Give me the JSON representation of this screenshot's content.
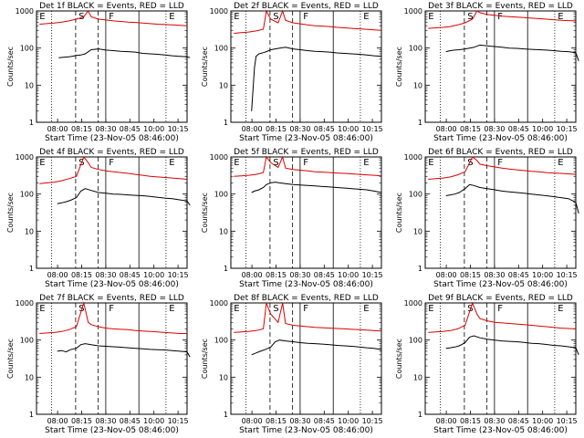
{
  "common": {
    "xlabel": "Start Time (23-Nov-05 08:46:00)",
    "ylabel": "Counts/sec",
    "xticks": [
      "08:00",
      "08:15",
      "08:30",
      "08:45",
      "10:00",
      "10:15"
    ],
    "yticks": [
      "1",
      "10",
      "100",
      "1000"
    ],
    "ylim": [
      1,
      1000
    ],
    "yscale": "log",
    "markers": [
      "E",
      "S",
      "F",
      "E"
    ],
    "colors": {
      "events": "#000000",
      "lld": "#dd0000"
    }
  },
  "chart_data": [
    {
      "type": "line",
      "title": "Det 1f BLACK = Events, RED = LLD",
      "series": [
        {
          "name": "Events",
          "color": "#000000",
          "x": [
            0.13,
            0.2,
            0.22,
            0.25,
            0.28,
            0.31,
            0.35,
            0.4,
            0.45,
            0.5,
            0.55,
            0.6,
            0.65,
            0.7,
            0.75,
            0.8,
            0.85,
            0.9,
            0.95,
            1.0,
            1.02
          ],
          "y": [
            55,
            58,
            60,
            63,
            65,
            70,
            90,
            95,
            88,
            85,
            82,
            80,
            78,
            72,
            70,
            68,
            65,
            62,
            60,
            58,
            55
          ]
        },
        {
          "name": "LLD",
          "color": "#dd0000",
          "x": [
            0,
            0.05,
            0.1,
            0.15,
            0.2,
            0.25,
            0.3,
            0.33,
            0.35,
            0.4,
            0.45,
            0.5,
            0.55,
            0.6,
            0.65,
            0.7,
            0.75,
            0.8,
            0.85,
            0.9,
            0.95,
            1.0
          ],
          "y": [
            440,
            455,
            470,
            500,
            540,
            600,
            700,
            1000,
            700,
            600,
            570,
            540,
            520,
            500,
            490,
            470,
            455,
            440,
            430,
            420,
            410,
            400
          ]
        }
      ]
    },
    {
      "type": "line",
      "title": "Det 2f BLACK = Events, RED = LLD",
      "series": [
        {
          "name": "Events",
          "color": "#000000",
          "x": [
            0.12,
            0.14,
            0.15,
            0.17,
            0.2,
            0.22,
            0.25,
            0.28,
            0.31,
            0.35,
            0.4,
            0.45,
            0.5,
            0.55,
            0.6,
            0.65,
            0.7,
            0.75,
            0.8,
            0.85,
            0.9,
            0.95,
            1.0
          ],
          "y": [
            2,
            30,
            60,
            70,
            75,
            80,
            90,
            95,
            100,
            105,
            95,
            90,
            85,
            82,
            80,
            78,
            74,
            72,
            70,
            68,
            65,
            62,
            60
          ]
        },
        {
          "name": "LLD",
          "color": "#dd0000",
          "x": [
            0,
            0.05,
            0.1,
            0.15,
            0.2,
            0.22,
            0.25,
            0.3,
            0.33,
            0.35,
            0.4,
            0.45,
            0.5,
            0.55,
            0.6,
            0.65,
            0.7,
            0.75,
            0.8,
            0.85,
            0.9,
            0.95,
            1.0
          ],
          "y": [
            250,
            260,
            270,
            290,
            320,
            1000,
            600,
            480,
            1000,
            560,
            480,
            450,
            420,
            400,
            390,
            380,
            360,
            350,
            340,
            330,
            320,
            310,
            300
          ]
        }
      ]
    },
    {
      "type": "line",
      "title": "Det 3f BLACK = Events, RED = LLD",
      "series": [
        {
          "name": "Events",
          "color": "#000000",
          "x": [
            0.12,
            0.15,
            0.18,
            0.21,
            0.25,
            0.28,
            0.31,
            0.35,
            0.4,
            0.45,
            0.5,
            0.55,
            0.6,
            0.65,
            0.7,
            0.75,
            0.8,
            0.85,
            0.9,
            0.95,
            1.0,
            1.02
          ],
          "y": [
            80,
            85,
            88,
            90,
            95,
            100,
            105,
            120,
            115,
            110,
            105,
            100,
            98,
            95,
            92,
            90,
            88,
            85,
            82,
            80,
            75,
            45
          ]
        },
        {
          "name": "LLD",
          "color": "#dd0000",
          "x": [
            0,
            0.05,
            0.1,
            0.15,
            0.2,
            0.25,
            0.3,
            0.33,
            0.35,
            0.4,
            0.45,
            0.5,
            0.55,
            0.6,
            0.65,
            0.7,
            0.75,
            0.8,
            0.85,
            0.9,
            0.95,
            1.0
          ],
          "y": [
            340,
            350,
            360,
            380,
            420,
            480,
            600,
            1000,
            900,
            800,
            760,
            720,
            700,
            680,
            660,
            640,
            620,
            600,
            580,
            560,
            550,
            540
          ]
        }
      ]
    },
    {
      "type": "line",
      "title": "Det 4f BLACK = Events, RED = LLD",
      "series": [
        {
          "name": "Events",
          "color": "#000000",
          "x": [
            0.12,
            0.15,
            0.18,
            0.21,
            0.25,
            0.28,
            0.31,
            0.35,
            0.4,
            0.45,
            0.5,
            0.55,
            0.6,
            0.65,
            0.7,
            0.75,
            0.8,
            0.85,
            0.9,
            0.95,
            1.0,
            1.02
          ],
          "y": [
            55,
            58,
            62,
            68,
            80,
            120,
            140,
            125,
            110,
            105,
            100,
            98,
            95,
            92,
            90,
            86,
            82,
            78,
            75,
            70,
            65,
            50
          ]
        },
        {
          "name": "LLD",
          "color": "#dd0000",
          "x": [
            0,
            0.05,
            0.1,
            0.15,
            0.2,
            0.25,
            0.3,
            0.33,
            0.35,
            0.4,
            0.45,
            0.5,
            0.55,
            0.6,
            0.65,
            0.7,
            0.75,
            0.8,
            0.85,
            0.9,
            0.95,
            1.0
          ],
          "y": [
            190,
            200,
            210,
            230,
            260,
            300,
            1000,
            700,
            520,
            460,
            420,
            400,
            380,
            360,
            340,
            320,
            300,
            290,
            280,
            270,
            260,
            250
          ]
        }
      ]
    },
    {
      "type": "line",
      "title": "Det 5f BLACK = Events, RED = LLD",
      "series": [
        {
          "name": "Events",
          "color": "#000000",
          "x": [
            0.12,
            0.14,
            0.17,
            0.2,
            0.22,
            0.25,
            0.28,
            0.31,
            0.35,
            0.4,
            0.45,
            0.5,
            0.55,
            0.6,
            0.65,
            0.7,
            0.75,
            0.8,
            0.85,
            0.9,
            0.95,
            1.0
          ],
          "y": [
            110,
            120,
            130,
            150,
            180,
            200,
            210,
            200,
            190,
            180,
            175,
            170,
            165,
            160,
            155,
            150,
            145,
            140,
            135,
            130,
            120,
            110
          ]
        },
        {
          "name": "LLD",
          "color": "#dd0000",
          "x": [
            0,
            0.05,
            0.1,
            0.15,
            0.2,
            0.22,
            0.25,
            0.3,
            0.33,
            0.35,
            0.4,
            0.45,
            0.5,
            0.55,
            0.6,
            0.65,
            0.7,
            0.75,
            0.8,
            0.85,
            0.9,
            0.95,
            1.0
          ],
          "y": [
            300,
            310,
            320,
            340,
            380,
            1000,
            700,
            520,
            1000,
            500,
            460,
            440,
            420,
            400,
            390,
            380,
            370,
            360,
            350,
            340,
            330,
            320,
            310
          ]
        }
      ]
    },
    {
      "type": "line",
      "title": "Det 6f BLACK = Events, RED = LLD",
      "series": [
        {
          "name": "Events",
          "color": "#000000",
          "x": [
            0.12,
            0.15,
            0.18,
            0.21,
            0.25,
            0.28,
            0.31,
            0.35,
            0.4,
            0.45,
            0.5,
            0.55,
            0.6,
            0.65,
            0.7,
            0.75,
            0.8,
            0.85,
            0.9,
            0.95,
            1.0,
            1.02
          ],
          "y": [
            90,
            95,
            100,
            110,
            140,
            180,
            170,
            150,
            140,
            130,
            120,
            115,
            110,
            105,
            100,
            95,
            90,
            85,
            80,
            75,
            60,
            30
          ]
        },
        {
          "name": "LLD",
          "color": "#dd0000",
          "x": [
            0,
            0.05,
            0.1,
            0.15,
            0.2,
            0.25,
            0.3,
            0.33,
            0.35,
            0.4,
            0.45,
            0.5,
            0.55,
            0.6,
            0.65,
            0.7,
            0.75,
            0.8,
            0.85,
            0.9,
            0.95,
            1.0
          ],
          "y": [
            250,
            260,
            270,
            290,
            330,
            400,
            1000,
            800,
            640,
            580,
            540,
            500,
            470,
            450,
            430,
            410,
            400,
            380,
            370,
            360,
            350,
            340
          ]
        }
      ]
    },
    {
      "type": "line",
      "title": "Det 7f BLACK = Events, RED = LLD",
      "series": [
        {
          "name": "Events",
          "color": "#000000",
          "x": [
            0.12,
            0.15,
            0.18,
            0.21,
            0.25,
            0.28,
            0.31,
            0.35,
            0.4,
            0.45,
            0.5,
            0.55,
            0.6,
            0.65,
            0.7,
            0.75,
            0.8,
            0.85,
            0.9,
            0.95,
            1.0,
            1.02
          ],
          "y": [
            50,
            52,
            48,
            55,
            60,
            75,
            80,
            75,
            70,
            68,
            66,
            64,
            62,
            60,
            58,
            56,
            55,
            54,
            52,
            50,
            48,
            35
          ]
        },
        {
          "name": "LLD",
          "color": "#dd0000",
          "x": [
            0,
            0.05,
            0.1,
            0.15,
            0.2,
            0.25,
            0.3,
            0.33,
            0.35,
            0.4,
            0.45,
            0.5,
            0.55,
            0.6,
            0.65,
            0.7,
            0.75,
            0.8,
            0.85,
            0.9,
            0.95,
            1.0
          ],
          "y": [
            150,
            155,
            160,
            170,
            190,
            230,
            1000,
            300,
            260,
            230,
            210,
            200,
            195,
            190,
            180,
            175,
            170,
            165,
            160,
            155,
            150,
            150
          ]
        }
      ]
    },
    {
      "type": "line",
      "title": "Det 8f BLACK = Events, RED = LLD",
      "series": [
        {
          "name": "Events",
          "color": "#000000",
          "x": [
            0.12,
            0.15,
            0.18,
            0.21,
            0.25,
            0.28,
            0.31,
            0.35,
            0.4,
            0.45,
            0.5,
            0.55,
            0.6,
            0.65,
            0.7,
            0.75,
            0.8,
            0.85,
            0.9,
            0.95,
            1.0
          ],
          "y": [
            40,
            45,
            50,
            55,
            65,
            90,
            100,
            95,
            90,
            85,
            82,
            80,
            78,
            75,
            72,
            70,
            68,
            65,
            62,
            60,
            55
          ]
        },
        {
          "name": "LLD",
          "color": "#dd0000",
          "x": [
            0,
            0.05,
            0.1,
            0.15,
            0.2,
            0.22,
            0.25,
            0.3,
            0.33,
            0.35,
            0.4,
            0.45,
            0.5,
            0.55,
            0.6,
            0.65,
            0.7,
            0.75,
            0.8,
            0.85,
            0.9,
            0.95,
            1.0
          ],
          "y": [
            160,
            165,
            170,
            180,
            200,
            1000,
            500,
            300,
            1000,
            280,
            250,
            240,
            230,
            220,
            215,
            210,
            205,
            200,
            195,
            190,
            185,
            180,
            175
          ]
        }
      ]
    },
    {
      "type": "line",
      "title": "Det 9f BLACK = Events, RED = LLD",
      "series": [
        {
          "name": "Events",
          "color": "#000000",
          "x": [
            0.12,
            0.15,
            0.18,
            0.21,
            0.25,
            0.28,
            0.31,
            0.35,
            0.4,
            0.45,
            0.5,
            0.55,
            0.6,
            0.65,
            0.7,
            0.75,
            0.8,
            0.85,
            0.9,
            0.95,
            1.0,
            1.02
          ],
          "y": [
            60,
            62,
            65,
            70,
            85,
            120,
            130,
            115,
            105,
            100,
            95,
            92,
            90,
            86,
            82,
            80,
            76,
            72,
            70,
            66,
            62,
            40
          ]
        },
        {
          "name": "LLD",
          "color": "#dd0000",
          "x": [
            0,
            0.05,
            0.1,
            0.15,
            0.2,
            0.25,
            0.3,
            0.33,
            0.35,
            0.4,
            0.45,
            0.5,
            0.55,
            0.6,
            0.65,
            0.7,
            0.75,
            0.8,
            0.85,
            0.9,
            0.95,
            1.0
          ],
          "y": [
            160,
            165,
            170,
            180,
            200,
            250,
            1000,
            500,
            380,
            330,
            300,
            290,
            280,
            270,
            260,
            250,
            240,
            230,
            220,
            210,
            205,
            200
          ]
        }
      ]
    }
  ]
}
